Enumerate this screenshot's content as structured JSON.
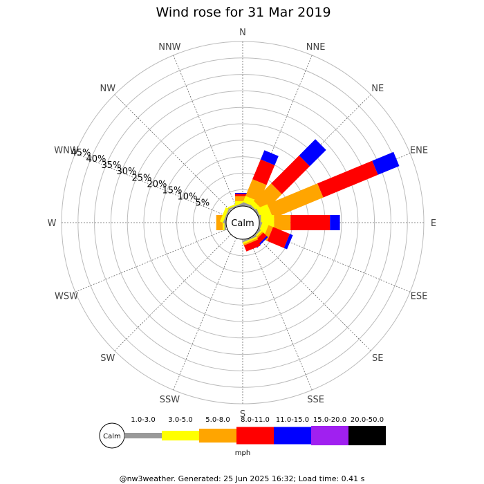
{
  "chart_data": {
    "type": "wind-rose",
    "title": "Wind rose for 31 Mar 2019",
    "calm_label": "Calm",
    "directions": [
      "N",
      "NNE",
      "NE",
      "ENE",
      "E",
      "ESE",
      "SE",
      "SSE",
      "S",
      "SSW",
      "SW",
      "WSW",
      "W",
      "WNW",
      "NW",
      "NNW"
    ],
    "radial_ticks": [
      5,
      10,
      15,
      20,
      25,
      30,
      35,
      40,
      45
    ],
    "radial_tick_labels": [
      "5%",
      "10%",
      "15%",
      "20%",
      "25%",
      "30%",
      "35%",
      "40%",
      "45%"
    ],
    "rmax": 50,
    "speed_bins": [
      {
        "label": "1.0-3.0",
        "color": "#999999"
      },
      {
        "label": "3.0-5.0",
        "color": "#ffff00"
      },
      {
        "label": "5.0-8.0",
        "color": "#ffa500"
      },
      {
        "label": "8.0-11.0",
        "color": "#ff0000"
      },
      {
        "label": "11.0-15.0",
        "color": "#0000ff"
      },
      {
        "label": "15.0-20.0",
        "color": "#a020f0"
      },
      {
        "label": "20.0-50.0",
        "color": "#000000"
      }
    ],
    "units": "mph",
    "values": {
      "N": [
        0.5,
        1.0,
        1.5,
        0.7,
        0.3,
        0,
        0
      ],
      "NNE": [
        0.8,
        2.0,
        5.5,
        6.5,
        3.0,
        0,
        0
      ],
      "NE": [
        0.5,
        1.5,
        7.5,
        12.0,
        7.0,
        0,
        0
      ],
      "ENE": [
        0.5,
        3.5,
        16.5,
        18.0,
        7.0,
        0,
        0
      ],
      "E": [
        0.5,
        4.0,
        5.0,
        12.0,
        3.0,
        0,
        0
      ],
      "ESE": [
        0.5,
        2.0,
        1.5,
        5.5,
        1.0,
        0,
        0
      ],
      "SE": [
        0.5,
        0.5,
        0.5,
        1.5,
        0.5,
        0,
        0
      ],
      "SSE": [
        0.5,
        0.5,
        0.5,
        2.0,
        0,
        0,
        0
      ],
      "S": [
        0,
        0,
        0,
        0,
        0,
        0,
        0
      ],
      "SSW": [
        0,
        0,
        0,
        0,
        0,
        0,
        0
      ],
      "SW": [
        0,
        0,
        0,
        0,
        0,
        0,
        0
      ],
      "WSW": [
        0,
        0,
        0,
        0,
        0,
        0,
        0
      ],
      "W": [
        0.5,
        0.5,
        2.0,
        0,
        0,
        0,
        0
      ],
      "WNW": [
        0.5,
        1.0,
        0,
        0,
        0,
        0,
        0
      ],
      "NW": [
        0,
        0,
        0,
        0,
        0,
        0,
        0
      ],
      "NNW": [
        0.5,
        0.5,
        0,
        0,
        0,
        0,
        0
      ]
    }
  },
  "footer": "@nw3weather. Generated: 25 Jun 2025 16:32; Load time: 0.41 s"
}
